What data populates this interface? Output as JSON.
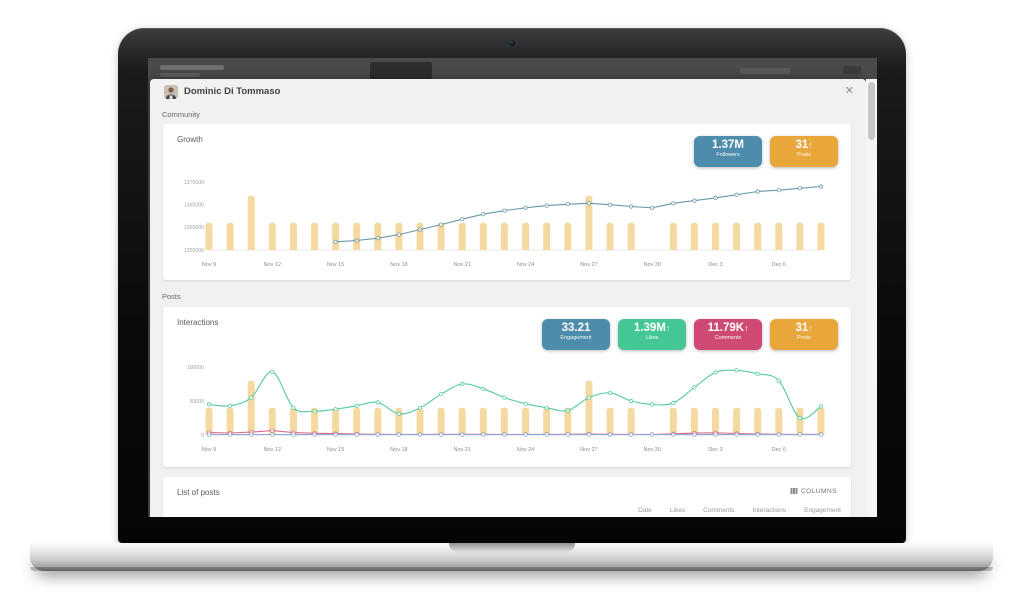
{
  "window": {
    "user_name": "Dominic Di Tommaso",
    "close_glyph": "✕"
  },
  "sections": {
    "community": "Community",
    "posts": "Posts"
  },
  "growth_card": {
    "title": "Growth",
    "badges": [
      {
        "value": "1.37M",
        "arrow": "",
        "label": "Followers",
        "color": "#4e8cab"
      },
      {
        "value": "31",
        "arrow": "↑",
        "label": "Posts",
        "color": "#e9a63b"
      }
    ]
  },
  "interactions_card": {
    "title": "Interactions",
    "badges": [
      {
        "value": "33.21",
        "arrow": "",
        "label": "Engagement",
        "color": "#4e8cab"
      },
      {
        "value": "1.39M",
        "arrow": "↑",
        "label": "Likes",
        "color": "#44c794"
      },
      {
        "value": "11.79K",
        "arrow": "↑",
        "label": "Comments",
        "color": "#cf4a73"
      },
      {
        "value": "31",
        "arrow": "↑",
        "label": "Posts",
        "color": "#e9a63b"
      }
    ]
  },
  "list_card": {
    "title": "List of posts",
    "columns_button": "COLUMNS",
    "table_headers": [
      "Date",
      "Likes",
      "Comments",
      "Interactions",
      "Engagement"
    ]
  },
  "chart_data": [
    {
      "type": "bar+line",
      "title": "Growth",
      "x": [
        "Nov 9",
        "Nov 10",
        "Nov 11",
        "Nov 12",
        "Nov 13",
        "Nov 14",
        "Nov 15",
        "Nov 16",
        "Nov 17",
        "Nov 18",
        "Nov 19",
        "Nov 20",
        "Nov 21",
        "Nov 22",
        "Nov 23",
        "Nov 24",
        "Nov 25",
        "Nov 26",
        "Nov 27",
        "Nov 28",
        "Nov 29",
        "Nov 30",
        "Dec 1",
        "Dec 2",
        "Dec 3",
        "Dec 4",
        "Dec 5",
        "Dec 6",
        "Dec 7",
        "Dec 8"
      ],
      "tick_every": 3,
      "ylim": [
        1355000,
        1370000
      ],
      "yticks": [
        1370000,
        1365000,
        1360000,
        1355000
      ],
      "grid": false,
      "legend": "none",
      "bars": {
        "name": "Posts",
        "color": "#f4d9a0",
        "ymax": 5,
        "values": [
          2,
          2,
          4,
          2,
          2,
          2,
          2,
          2,
          2,
          2,
          2,
          2,
          2,
          2,
          2,
          2,
          2,
          2,
          4,
          2,
          2,
          0,
          2,
          2,
          2,
          2,
          2,
          2,
          2,
          2
        ]
      },
      "lines": [
        {
          "name": "Followers",
          "color": "#6897ab",
          "smooth": false,
          "values": [
            null,
            null,
            null,
            null,
            null,
            null,
            1356800,
            1357100,
            1357600,
            1358400,
            1359500,
            1360600,
            1361800,
            1362900,
            1363700,
            1364300,
            1364800,
            1365100,
            1365300,
            1365000,
            1364600,
            1364300,
            1365300,
            1365900,
            1366500,
            1367200,
            1367900,
            1368200,
            1368600,
            1369000
          ]
        }
      ]
    },
    {
      "type": "bar+line",
      "title": "Interactions",
      "x": [
        "Nov 9",
        "Nov 10",
        "Nov 11",
        "Nov 12",
        "Nov 13",
        "Nov 14",
        "Nov 15",
        "Nov 16",
        "Nov 17",
        "Nov 18",
        "Nov 19",
        "Nov 20",
        "Nov 21",
        "Nov 22",
        "Nov 23",
        "Nov 24",
        "Nov 25",
        "Nov 26",
        "Nov 27",
        "Nov 28",
        "Nov 29",
        "Nov 30",
        "Dec 1",
        "Dec 2",
        "Dec 3",
        "Dec 4",
        "Dec 5",
        "Dec 6",
        "Dec 7",
        "Dec 8"
      ],
      "tick_every": 3,
      "ylim": [
        0,
        100000
      ],
      "yticks": [
        100000,
        50000,
        0
      ],
      "grid": false,
      "legend": "none",
      "bars": {
        "name": "Posts",
        "color": "#f4d9a0",
        "ymax": 5,
        "values": [
          2,
          2,
          4,
          2,
          2,
          2,
          2,
          2,
          2,
          2,
          2,
          2,
          2,
          2,
          2,
          2,
          2,
          2,
          4,
          2,
          2,
          0,
          2,
          2,
          2,
          2,
          2,
          2,
          2,
          2
        ]
      },
      "lines": [
        {
          "name": "Comments",
          "color": "#d56d8d",
          "smooth": false,
          "values": [
            3500,
            3000,
            4200,
            6500,
            3500,
            2500,
            2000,
            1400,
            1000,
            900,
            900,
            1000,
            1100,
            1000,
            900,
            900,
            900,
            1000,
            1300,
            1100,
            900,
            900,
            1800,
            2800,
            3200,
            2200,
            1400,
            1100,
            900,
            1000
          ]
        },
        {
          "name": "Engagement",
          "color": "#90a8d8",
          "smooth": false,
          "values": [
            600,
            600,
            600,
            600,
            600,
            600,
            600,
            600,
            600,
            600,
            600,
            600,
            600,
            600,
            600,
            600,
            600,
            600,
            600,
            600,
            600,
            600,
            600,
            600,
            600,
            600,
            600,
            600,
            600,
            600
          ]
        },
        {
          "name": "Likes",
          "color": "#56c9a0",
          "smooth": true,
          "values": [
            45000,
            43000,
            55000,
            93000,
            40000,
            35000,
            38000,
            43000,
            48000,
            31000,
            40000,
            60000,
            75000,
            68000,
            55000,
            46000,
            40000,
            36000,
            55000,
            62000,
            50000,
            45000,
            47000,
            70000,
            92000,
            95000,
            90000,
            80000,
            25000,
            42000
          ]
        }
      ]
    }
  ]
}
